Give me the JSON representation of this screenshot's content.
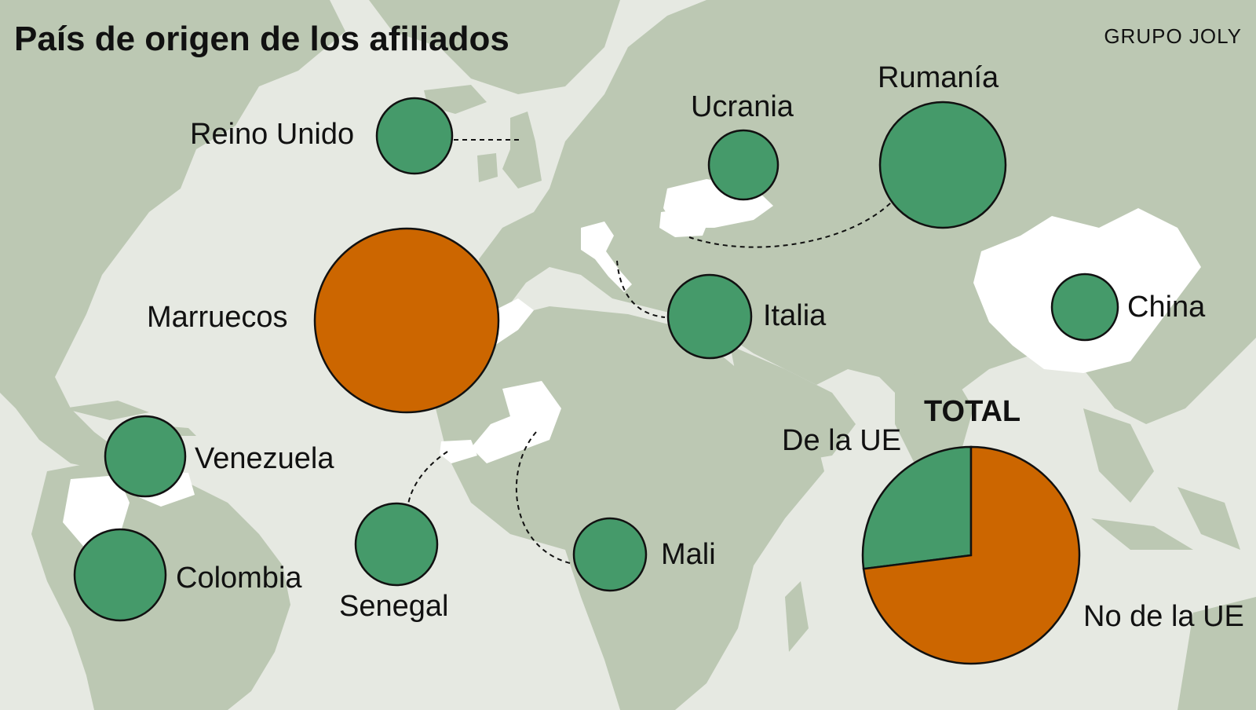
{
  "title": "País de origen de los afiliados",
  "brand": "GRUPO JOLY",
  "colors": {
    "ocean": "#e6e9e2",
    "land": "#bcc8b3",
    "highlight": "#ffffff",
    "non_eu": "#cc6600",
    "eu": "#459a6a"
  },
  "countries": [
    {
      "id": "reino-unido",
      "label": "Reino Unido",
      "group": "eu"
    },
    {
      "id": "marruecos",
      "label": "Marruecos",
      "group": "non_eu"
    },
    {
      "id": "venezuela",
      "label": "Venezuela",
      "group": "eu"
    },
    {
      "id": "colombia",
      "label": "Colombia",
      "group": "eu"
    },
    {
      "id": "senegal",
      "label": "Senegal",
      "group": "eu"
    },
    {
      "id": "mali",
      "label": "Mali",
      "group": "eu"
    },
    {
      "id": "ucrania",
      "label": "Ucrania",
      "group": "eu"
    },
    {
      "id": "rumania",
      "label": "Rumanía",
      "group": "eu"
    },
    {
      "id": "italia",
      "label": "Italia",
      "group": "eu"
    },
    {
      "id": "china",
      "label": "China",
      "group": "eu"
    }
  ],
  "total": {
    "title": "TOTAL",
    "slices": [
      {
        "label": "De la UE",
        "share": 0.27
      },
      {
        "label": "No de la UE",
        "share": 0.73
      }
    ]
  }
}
